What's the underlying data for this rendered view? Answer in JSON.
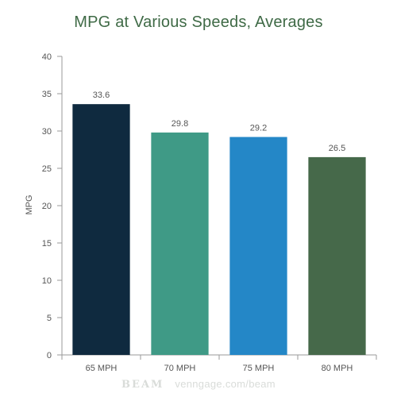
{
  "chart_data": {
    "type": "bar",
    "title": "MPG at Various Speeds, Averages",
    "xlabel": "",
    "ylabel": "MPG",
    "categories": [
      "65 MPH",
      "70 MPH",
      "75 MPH",
      "80 MPH"
    ],
    "values": [
      33.6,
      29.8,
      29.2,
      26.5
    ],
    "value_labels": [
      "33.6",
      "29.8",
      "29.2",
      "26.5"
    ],
    "ylim": [
      0,
      40
    ],
    "yticks": [
      0,
      5,
      10,
      15,
      20,
      25,
      30,
      35,
      40
    ],
    "bar_colors": [
      "#0f2a3f",
      "#3f9a86",
      "#2487c7",
      "#46694a"
    ],
    "grid": false,
    "legend": "none"
  },
  "watermark": {
    "brand": "BEAM",
    "url": "venngage.com/beam"
  }
}
